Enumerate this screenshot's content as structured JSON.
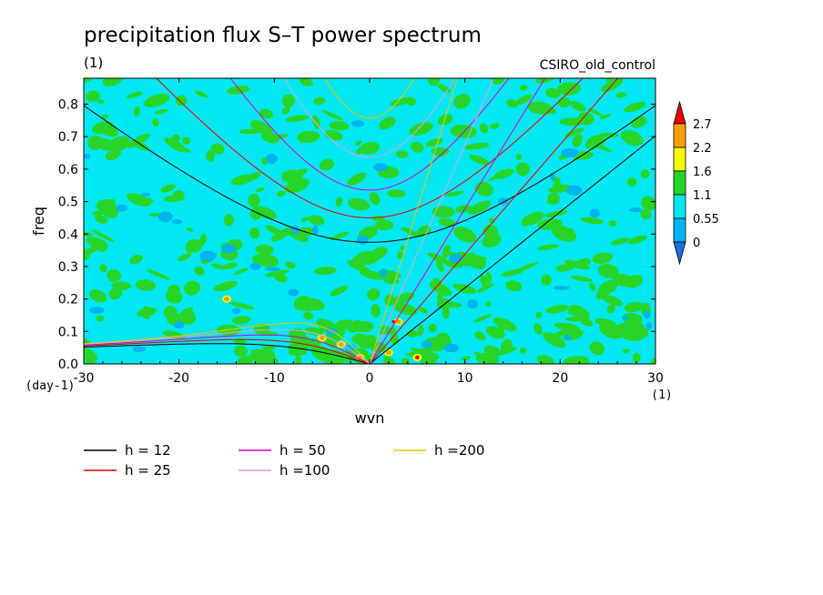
{
  "chart_data": {
    "type": "heatmap",
    "title": "precipitation flux S–T power spectrum",
    "subtitle": "(1)",
    "annotation": "CSIRO_old_control",
    "xlabel": "wvn",
    "ylabel": "freq",
    "x_unit": "(1)",
    "y_unit": "(day-1)",
    "xlim": [
      -30,
      30
    ],
    "ylim": [
      0,
      0.88
    ],
    "x_ticks": [
      -30,
      -20,
      -10,
      0,
      10,
      20,
      30
    ],
    "y_ticks": [
      0.0,
      0.1,
      0.2,
      0.3,
      0.4,
      0.5,
      0.6,
      0.7,
      0.8
    ],
    "colorbar": {
      "levels": [
        "0",
        "0.55",
        "1.1",
        "1.6",
        "2.2",
        "2.7"
      ],
      "colors": [
        "#1b6fe0",
        "#00b4f0",
        "#00e8f2",
        "#28d428",
        "#f8f800",
        "#f8a000",
        "#e80000"
      ]
    },
    "dispersion_curves": [
      {
        "name": "h = 12",
        "h": 12,
        "color": "#000000"
      },
      {
        "name": "h = 25",
        "h": 25,
        "color": "#e00000"
      },
      {
        "name": "h = 50",
        "h": 50,
        "color": "#d000d0"
      },
      {
        "name": "h =100",
        "h": 100,
        "color": "#d8a0d8"
      },
      {
        "name": "h =200",
        "h": 200,
        "color": "#e8c800"
      }
    ],
    "background_color": "#00e8f2"
  }
}
